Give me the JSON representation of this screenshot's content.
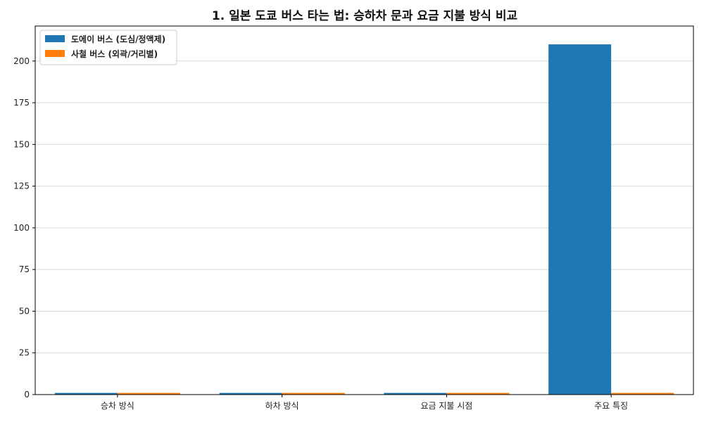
{
  "chart_data": {
    "type": "bar",
    "title": "1. 일본 도쿄 버스 타는 법: 승하차 문과 요금 지불 방식 비교",
    "xlabel": "",
    "ylabel": "",
    "categories": [
      "승차 방식",
      "하차 방식",
      "요금 지불 시점",
      "주요 특징"
    ],
    "series": [
      {
        "name": "도에이 버스 (도심/정액제)",
        "values": [
          1,
          1,
          1,
          210
        ],
        "color": "#1f77b4"
      },
      {
        "name": "사철 버스 (외곽/거리별)",
        "values": [
          1,
          1,
          1,
          1
        ],
        "color": "#ff7f0e"
      }
    ],
    "ylim": [
      0,
      221
    ],
    "yticks": [
      0,
      25,
      50,
      75,
      100,
      125,
      150,
      175,
      200
    ],
    "grid": "y",
    "legend": "top-left"
  }
}
